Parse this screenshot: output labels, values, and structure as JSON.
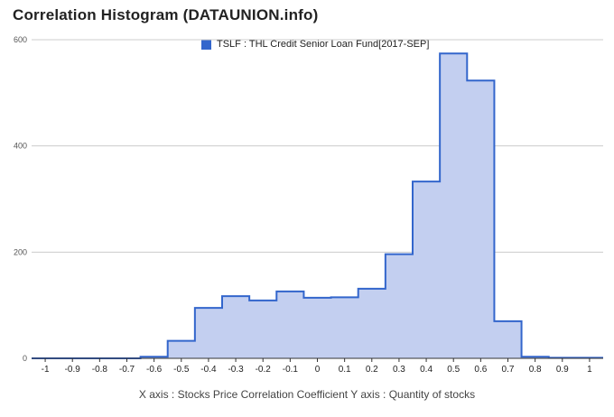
{
  "title": "Correlation Histogram (DATAUNION.info)",
  "caption": "X axis : Stocks Price Correlation Coefficient  Y axis : Quantity of stocks",
  "colors": {
    "line": "#3366cc",
    "fill": "#c3cff0",
    "grid": "#cccccc",
    "axis": "#333333"
  },
  "chart_data": {
    "type": "area",
    "series": [
      {
        "name": "TSLF : THL Credit Senior Loan Fund[2017-SEP]",
        "bins": [
          {
            "x": -1.0,
            "y": 0
          },
          {
            "x": -0.9,
            "y": 0
          },
          {
            "x": -0.8,
            "y": 0
          },
          {
            "x": -0.7,
            "y": 0
          },
          {
            "x": -0.6,
            "y": 3
          },
          {
            "x": -0.5,
            "y": 33
          },
          {
            "x": -0.4,
            "y": 95
          },
          {
            "x": -0.3,
            "y": 117
          },
          {
            "x": -0.2,
            "y": 109
          },
          {
            "x": -0.1,
            "y": 126
          },
          {
            "x": 0.0,
            "y": 114
          },
          {
            "x": 0.1,
            "y": 115
          },
          {
            "x": 0.2,
            "y": 131
          },
          {
            "x": 0.3,
            "y": 196
          },
          {
            "x": 0.4,
            "y": 333
          },
          {
            "x": 0.5,
            "y": 574
          },
          {
            "x": 0.6,
            "y": 523
          },
          {
            "x": 0.7,
            "y": 70
          },
          {
            "x": 0.8,
            "y": 3
          },
          {
            "x": 0.9,
            "y": 1
          },
          {
            "x": 1.0,
            "y": 1
          }
        ]
      }
    ],
    "x_ticks": [
      "-1",
      "-0.9",
      "-0.8",
      "-0.7",
      "-0.6",
      "-0.5",
      "-0.4",
      "-0.3",
      "-0.2",
      "-0.1",
      "0",
      "0.1",
      "0.2",
      "0.3",
      "0.4",
      "0.5",
      "0.6",
      "0.7",
      "0.8",
      "0.9",
      "1"
    ],
    "y_ticks": [
      "0",
      "200",
      "400",
      "600"
    ],
    "xlim": [
      -1.05,
      1.05
    ],
    "ylim": [
      0,
      600
    ],
    "grid": true,
    "legend_position": "top"
  }
}
